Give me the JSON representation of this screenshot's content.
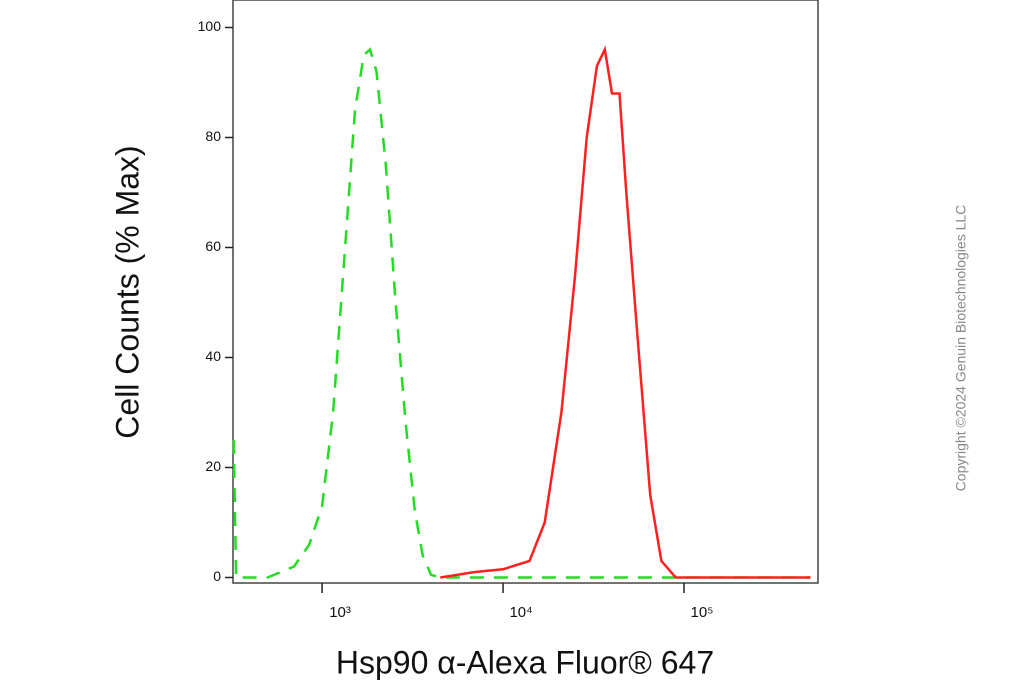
{
  "chart_data": {
    "type": "line",
    "xlabel": "Hsp90 α-Alexa Fluor® 647",
    "ylabel": "Cell Counts (% Max)",
    "annotation": "Copyright ©2024 Genuin Biotechnologies LLC",
    "xscale": "log",
    "xlim": [
      322,
      550000
    ],
    "ylim": [
      -1,
      105
    ],
    "xticks": [
      {
        "value": 1000,
        "label": "10³"
      },
      {
        "value": 10000,
        "label": "10⁴"
      },
      {
        "value": 100000,
        "label": "10⁵"
      }
    ],
    "yticks": [
      0,
      20,
      40,
      60,
      80,
      100
    ],
    "series": [
      {
        "color": "#22dd22",
        "dash": true,
        "x": [
          325,
          335,
          500,
          700,
          850,
          1000,
          1150,
          1340,
          1520,
          1700,
          1840,
          2000,
          2250,
          2550,
          2900,
          3260,
          3600,
          4000,
          4500,
          500000
        ],
        "values": [
          25,
          0,
          0,
          2,
          6,
          13,
          30,
          60,
          85,
          95,
          96,
          92,
          75,
          50,
          28,
          12,
          4,
          0.5,
          0,
          0
        ]
      },
      {
        "color": "#ff2020",
        "dash": false,
        "x": [
          4500,
          7000,
          10000,
          14000,
          17000,
          21000,
          25000,
          29000,
          33000,
          36500,
          40000,
          44000,
          48000,
          55000,
          65000,
          75000,
          90000,
          500000
        ],
        "values": [
          0,
          1,
          1.5,
          3,
          10,
          30,
          55,
          80,
          93,
          96,
          88,
          88,
          70,
          45,
          15,
          3,
          0,
          0
        ]
      }
    ]
  }
}
